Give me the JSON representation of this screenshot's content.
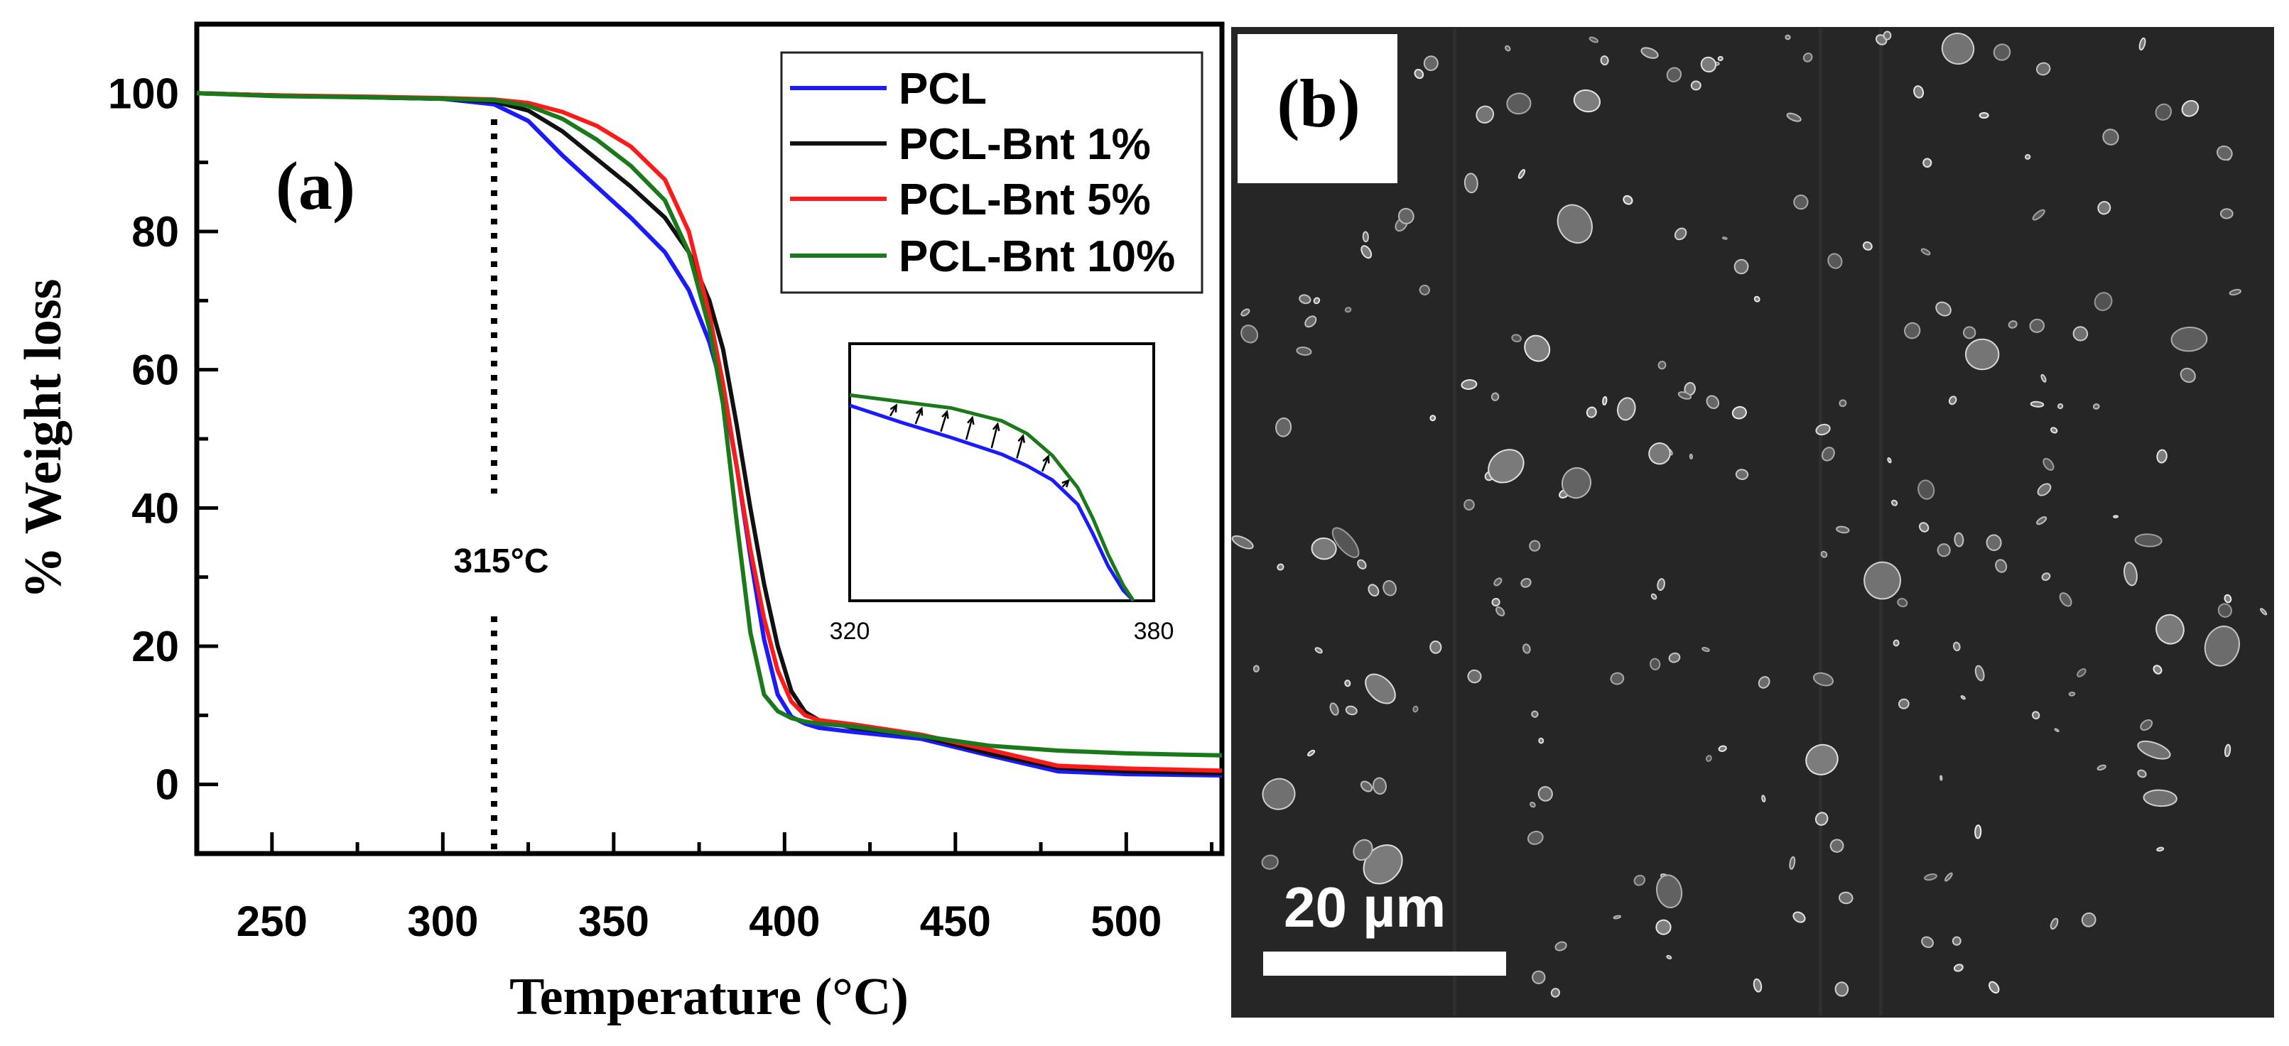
{
  "figure": {
    "panel_a_label": "(a)",
    "panel_b_label": "(b)",
    "scale_bar_label": "20 µm",
    "sem_background": "#262626"
  },
  "chart_data": [
    {
      "type": "line",
      "title": "",
      "xlabel": "Temperature (°C)",
      "ylabel": "% Weight loss",
      "xlim": [
        228,
        528
      ],
      "ylim": [
        -10,
        110
      ],
      "xticks": [
        250,
        300,
        350,
        400,
        450,
        500
      ],
      "yticks": [
        0,
        20,
        40,
        60,
        80,
        100
      ],
      "grid": false,
      "legend": "top-right",
      "annotation": {
        "label": "315°C",
        "x": 315
      },
      "series": [
        {
          "name": "PCL",
          "color": "#1a1aff",
          "x": [
            228,
            250,
            280,
            300,
            315,
            325,
            335,
            345,
            355,
            365,
            372,
            378,
            382,
            386,
            390,
            394,
            398,
            402,
            406,
            410,
            420,
            440,
            460,
            480,
            500,
            528
          ],
          "y": [
            100,
            99.7,
            99.4,
            99.2,
            98.4,
            96,
            91,
            86.5,
            82,
            77,
            71.5,
            64,
            57,
            46,
            33,
            21,
            13,
            9.8,
            8.8,
            8.2,
            7.6,
            6.6,
            4.2,
            1.9,
            1.5,
            1.3
          ]
        },
        {
          "name": "PCL-Bnt 1%",
          "color": "#111111",
          "x": [
            228,
            250,
            280,
            300,
            315,
            325,
            335,
            345,
            355,
            365,
            372,
            378,
            382,
            386,
            390,
            394,
            398,
            402,
            406,
            410,
            420,
            440,
            460,
            480,
            500,
            528
          ],
          "y": [
            100,
            99.7,
            99.4,
            99.2,
            98.8,
            97.5,
            94.5,
            90.5,
            86.5,
            82,
            77,
            70,
            63,
            52,
            40,
            29,
            20,
            13.5,
            10.5,
            9.3,
            8.2,
            7,
            4.5,
            2.4,
            1.9,
            1.6
          ]
        },
        {
          "name": "PCL-Bnt 5%",
          "color": "#ff1a1a",
          "x": [
            228,
            250,
            280,
            300,
            315,
            325,
            335,
            345,
            355,
            365,
            372,
            378,
            382,
            386,
            390,
            394,
            398,
            402,
            406,
            410,
            420,
            440,
            460,
            480,
            500,
            528
          ],
          "y": [
            100,
            99.7,
            99.5,
            99.3,
            99.1,
            98.6,
            97.3,
            95.3,
            92.3,
            87.5,
            80,
            68,
            58,
            46,
            34,
            24,
            16.5,
            12,
            10,
            9.3,
            8.7,
            7.2,
            5,
            2.7,
            2.3,
            2
          ]
        },
        {
          "name": "PCL-Bnt 10%",
          "color": "#1a7a1a",
          "x": [
            228,
            250,
            280,
            300,
            315,
            325,
            335,
            345,
            355,
            365,
            372,
            378,
            382,
            386,
            390,
            394,
            398,
            402,
            406,
            410,
            420,
            440,
            460,
            480,
            500,
            528
          ],
          "y": [
            100,
            99.6,
            99.4,
            99.2,
            99,
            98.2,
            96.3,
            93.3,
            89.5,
            84.5,
            77,
            66,
            55,
            38,
            22,
            13,
            10.6,
            9.6,
            9.1,
            8.8,
            8.4,
            7,
            5.6,
            4.9,
            4.5,
            4.2
          ]
        }
      ]
    },
    {
      "type": "line",
      "title": "",
      "xlabel": "",
      "ylabel": "",
      "xlim": [
        320,
        380
      ],
      "xticks": [
        320,
        380
      ],
      "ylim": [
        0,
        100
      ],
      "grid": false,
      "note": "inset zoom; y values are relative curve heights",
      "series": [
        {
          "name": "PCL",
          "color": "#1a1aff",
          "x": [
            320,
            330,
            340,
            350,
            355,
            360,
            365,
            368,
            371,
            374,
            376
          ],
          "y": [
            76,
            69.5,
            63.5,
            57,
            52.5,
            47,
            37.5,
            26,
            13.5,
            4,
            0
          ]
        },
        {
          "name": "PCL-Bnt 10%",
          "color": "#1a7a1a",
          "x": [
            320,
            330,
            340,
            350,
            355,
            360,
            365,
            368,
            371,
            374,
            376
          ],
          "y": [
            80,
            77.5,
            75,
            70,
            65,
            56.5,
            44,
            32,
            18,
            6,
            0
          ]
        }
      ]
    }
  ]
}
